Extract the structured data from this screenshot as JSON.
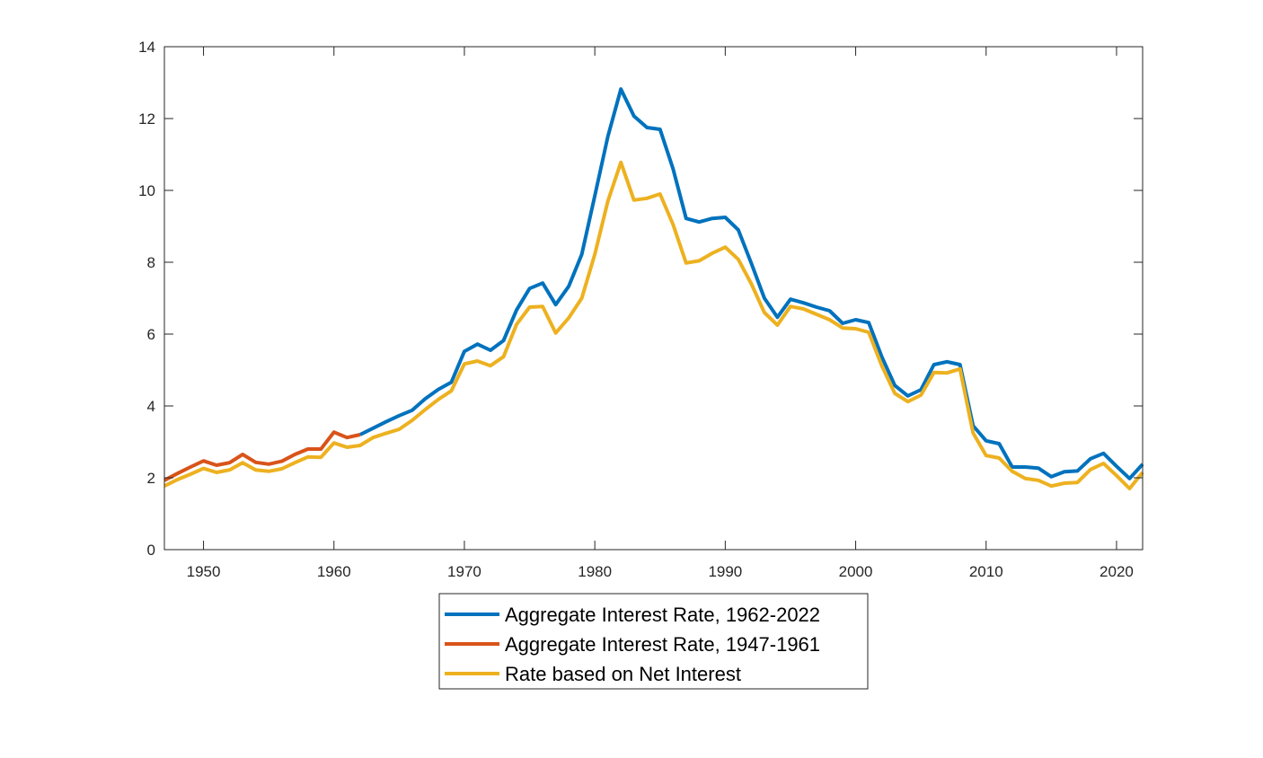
{
  "chart_data": {
    "type": "line",
    "title": "",
    "xlabel": "",
    "ylabel": "",
    "xlim": [
      1947,
      2022
    ],
    "ylim": [
      0,
      14
    ],
    "xticks": [
      1950,
      1960,
      1970,
      1980,
      1990,
      2000,
      2010,
      2020
    ],
    "yticks": [
      0,
      2,
      4,
      6,
      8,
      10,
      12,
      14
    ],
    "grid": false,
    "legend_position": "bottom",
    "series": [
      {
        "name": "Aggregate Interest Rate, 1962-2022",
        "color": "#0072BD",
        "x": [
          1962,
          1963,
          1964,
          1965,
          1966,
          1967,
          1968,
          1969,
          1970,
          1971,
          1972,
          1973,
          1974,
          1975,
          1976,
          1977,
          1978,
          1979,
          1980,
          1981,
          1982,
          1983,
          1984,
          1985,
          1986,
          1987,
          1988,
          1989,
          1990,
          1991,
          1992,
          1993,
          1994,
          1995,
          1996,
          1997,
          1998,
          1999,
          2000,
          2001,
          2002,
          2003,
          2004,
          2005,
          2006,
          2007,
          2008,
          2009,
          2010,
          2011,
          2012,
          2013,
          2014,
          2015,
          2016,
          2017,
          2018,
          2019,
          2020,
          2021,
          2022
        ],
        "values": [
          3.2,
          3.38,
          3.56,
          3.73,
          3.88,
          4.2,
          4.46,
          4.66,
          5.52,
          5.72,
          5.55,
          5.82,
          6.67,
          7.27,
          7.42,
          6.82,
          7.33,
          8.22,
          9.85,
          11.5,
          12.82,
          12.07,
          11.75,
          11.7,
          10.6,
          9.22,
          9.12,
          9.22,
          9.25,
          8.9,
          7.97,
          7.0,
          6.47,
          6.97,
          6.87,
          6.75,
          6.65,
          6.3,
          6.4,
          6.32,
          5.37,
          4.57,
          4.28,
          4.45,
          5.15,
          5.23,
          5.15,
          3.45,
          3.03,
          2.95,
          2.3,
          2.3,
          2.27,
          2.03,
          2.17,
          2.19,
          2.53,
          2.68,
          2.32,
          1.98,
          2.38
        ]
      },
      {
        "name": "Aggregate Interest Rate, 1947-1961",
        "color": "#D95319",
        "x": [
          1947,
          1948,
          1949,
          1950,
          1951,
          1952,
          1953,
          1954,
          1955,
          1956,
          1957,
          1958,
          1959,
          1960,
          1961,
          1962
        ],
        "values": [
          1.93,
          2.12,
          2.3,
          2.47,
          2.35,
          2.42,
          2.65,
          2.43,
          2.38,
          2.46,
          2.65,
          2.8,
          2.8,
          3.27,
          3.12,
          3.2
        ]
      },
      {
        "name": "Rate based on Net Interest",
        "color": "#EDB120",
        "x": [
          1947,
          1948,
          1949,
          1950,
          1951,
          1952,
          1953,
          1954,
          1955,
          1956,
          1957,
          1958,
          1959,
          1960,
          1961,
          1962,
          1963,
          1964,
          1965,
          1966,
          1967,
          1968,
          1969,
          1970,
          1971,
          1972,
          1973,
          1974,
          1975,
          1976,
          1977,
          1978,
          1979,
          1980,
          1981,
          1982,
          1983,
          1984,
          1985,
          1986,
          1987,
          1988,
          1989,
          1990,
          1991,
          1992,
          1993,
          1994,
          1995,
          1996,
          1997,
          1998,
          1999,
          2000,
          2001,
          2002,
          2003,
          2004,
          2005,
          2006,
          2007,
          2008,
          2009,
          2010,
          2011,
          2012,
          2013,
          2014,
          2015,
          2016,
          2017,
          2018,
          2019,
          2020,
          2021,
          2022
        ],
        "values": [
          1.77,
          1.95,
          2.1,
          2.26,
          2.15,
          2.22,
          2.42,
          2.22,
          2.18,
          2.25,
          2.42,
          2.58,
          2.57,
          2.97,
          2.85,
          2.9,
          3.12,
          3.24,
          3.35,
          3.6,
          3.9,
          4.18,
          4.42,
          5.17,
          5.25,
          5.12,
          5.37,
          6.27,
          6.75,
          6.77,
          6.03,
          6.45,
          7.0,
          8.22,
          9.7,
          10.78,
          9.73,
          9.78,
          9.9,
          9.05,
          7.98,
          8.04,
          8.25,
          8.42,
          8.08,
          7.4,
          6.6,
          6.25,
          6.77,
          6.7,
          6.55,
          6.4,
          6.17,
          6.15,
          6.05,
          5.12,
          4.35,
          4.12,
          4.3,
          4.93,
          4.92,
          5.03,
          3.25,
          2.62,
          2.55,
          2.18,
          1.98,
          1.93,
          1.77,
          1.85,
          1.87,
          2.23,
          2.4,
          2.06,
          1.7,
          2.15
        ]
      }
    ]
  }
}
